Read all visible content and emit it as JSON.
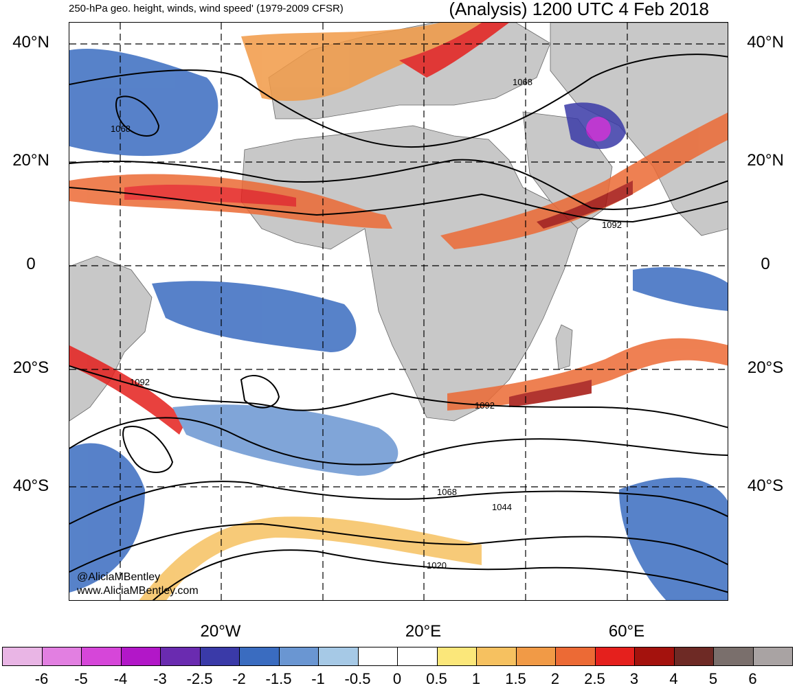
{
  "title": {
    "left": "250-hPa geo. height, winds, wind speed' (1979-2009 CFSR)",
    "right": "(Analysis) 1200 UTC 4 Feb 2018"
  },
  "axes": {
    "lat_labels": [
      "40°N",
      "20°N",
      "0",
      "20°S",
      "40°S"
    ],
    "lon_labels": [
      "20°W",
      "20°E",
      "60°E"
    ]
  },
  "contour_labels": [
    "1068",
    "1068",
    "1092",
    "1092",
    "1092",
    "1068",
    "1044",
    "1020"
  ],
  "credits": [
    "@AliciaMBentley",
    "www.AliciaMBentley.com"
  ],
  "colorbar": {
    "ticks": [
      "-6",
      "-5",
      "-4",
      "-3",
      "-2.5",
      "-2",
      "-1.5",
      "-1",
      "-0.5",
      "0",
      "0.5",
      "1",
      "1.5",
      "2",
      "2.5",
      "3",
      "4",
      "5",
      "6"
    ],
    "colors": [
      "#e9b5e5",
      "#e27fe1",
      "#d646d9",
      "#b217c8",
      "#6a2bb0",
      "#3a3aa8",
      "#3a6cc0",
      "#6a96d2",
      "#a6c9e6",
      "#ffffff",
      "#ffffff",
      "#fbe77a",
      "#f6c160",
      "#f19a46",
      "#ec6a35",
      "#e5201d",
      "#a4120d",
      "#6e2a25",
      "#7a6f6c",
      "#a9a3a3"
    ]
  },
  "colors": {
    "land": "#c8c8c8",
    "contour": "#000000"
  }
}
